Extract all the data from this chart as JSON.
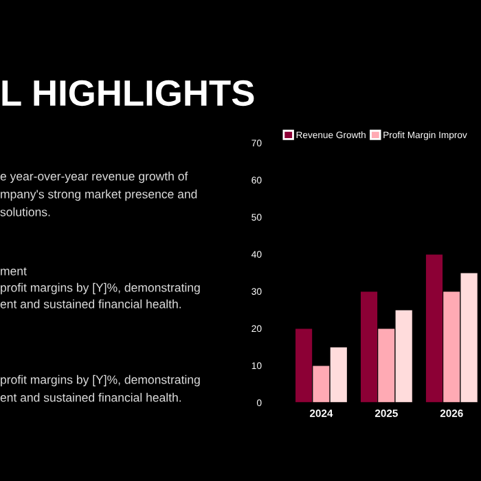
{
  "chart_data": {
    "type": "bar",
    "title": "L HIGHLIGHTS",
    "annotations": [
      "e year-over-year revenue growth of",
      "mpany's strong market presence and",
      "solutions.",
      "ment",
      "profit margins by [Y]%, demonstrating",
      "ent and sustained financial health.",
      "profit margins by [Y]%, demonstrating",
      "ent and sustained financial health."
    ],
    "categories": [
      "2024",
      "2025",
      "2026"
    ],
    "series": [
      {
        "name": "Revenue Growth",
        "color": "#8c0035",
        "values": [
          20,
          30,
          40
        ]
      },
      {
        "name": "Profit Margin Improv",
        "color": "#ffaab4",
        "values": [
          10,
          20,
          30
        ]
      },
      {
        "color": "#ffdcdc",
        "values": [
          15,
          25,
          35
        ]
      }
    ],
    "ylim": [
      0,
      70
    ],
    "yticks": [
      0,
      10,
      20,
      30,
      40,
      50,
      60,
      70
    ],
    "grid": false,
    "legend": "top left"
  }
}
